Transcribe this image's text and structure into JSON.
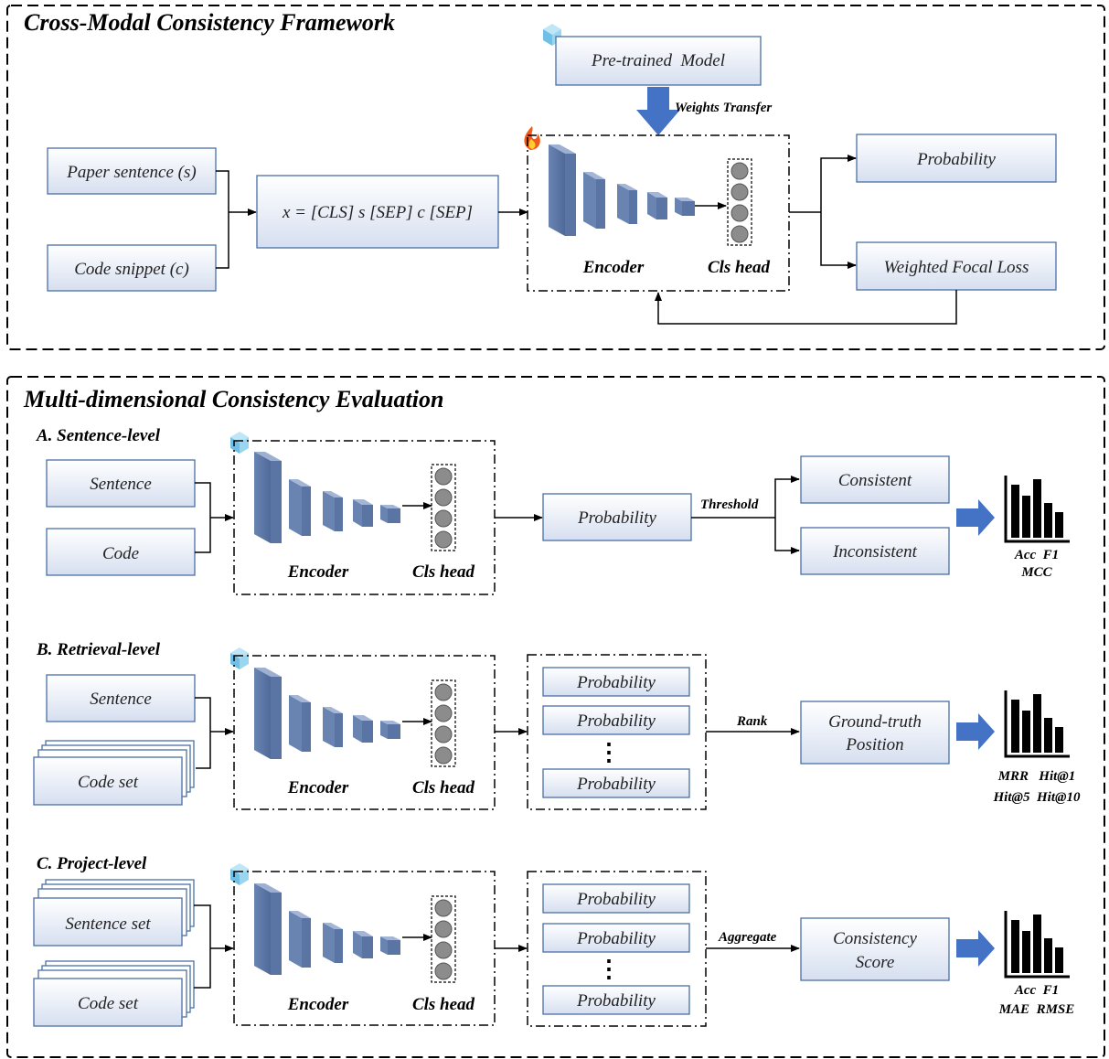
{
  "top_panel": {
    "title": "Cross-Modal Consistency Framework",
    "inputs": [
      "Paper sentence (s)",
      "Code snippet (c)"
    ],
    "concat": "x = [CLS] s [SEP] c [SEP]",
    "pretrained": "Pre-trained  Model",
    "weights_transfer": "Weights Transfer",
    "encoder_label": "Encoder",
    "cls_label": "Cls head",
    "outputs": [
      "Probability",
      "Weighted Focal Loss"
    ]
  },
  "bottom_panel": {
    "title": "Multi-dimensional Consistency Evaluation",
    "sentence_level": {
      "heading": "A. Sentence-level",
      "inputs": [
        "Sentence",
        "Code"
      ],
      "encoder_label": "Encoder",
      "cls_label": "Cls head",
      "probability": "Probability",
      "threshold": "Threshold",
      "outcomes": [
        "Consistent",
        "Inconsistent"
      ],
      "metrics": [
        "Acc  F1",
        "MCC"
      ]
    },
    "retrieval_level": {
      "heading": "B. Retrieval-level",
      "inputs": [
        "Sentence",
        "Code set"
      ],
      "encoder_label": "Encoder",
      "cls_label": "Cls head",
      "probabilities": [
        "Probability",
        "Probability",
        "Probability"
      ],
      "dots": "⋮",
      "rank": "Rank",
      "result": [
        "Ground-truth",
        "Position"
      ],
      "metrics": [
        "MRR   Hit@1",
        "Hit@5  Hit@10"
      ]
    },
    "project_level": {
      "heading": "C. Project-level",
      "inputs": [
        "Sentence set",
        "Code set"
      ],
      "encoder_label": "Encoder",
      "cls_label": "Cls head",
      "probabilities": [
        "Probability",
        "Probability",
        "Probability"
      ],
      "dots": "⋮",
      "aggregate": "Aggregate",
      "result": [
        "Consistency",
        "Score"
      ],
      "metrics": [
        "Acc  F1",
        "MAE  RMSE"
      ]
    }
  },
  "colors": {
    "box_border": "#4a6fa5",
    "box_fill_top": "#ffffff",
    "box_fill_bottom": "#d9e2f0",
    "encoder_fill": "#5f7aa8",
    "arrow_blue": "#4472c4",
    "node_gray": "#8c8c8c"
  }
}
